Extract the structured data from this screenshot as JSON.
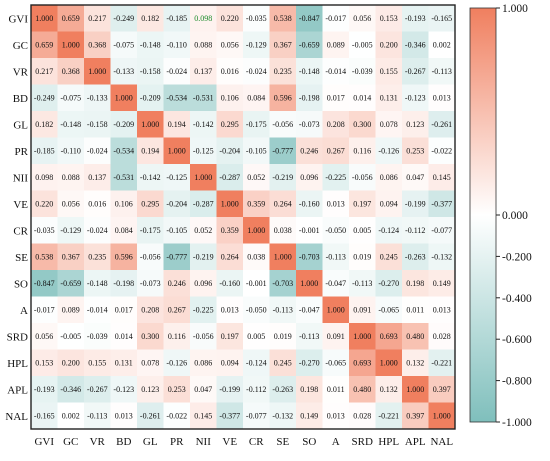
{
  "chart_data": {
    "type": "heatmap",
    "title": "",
    "xlabel": "",
    "ylabel": "",
    "labels": [
      "GVI",
      "GC",
      "VR",
      "BD",
      "GL",
      "PR",
      "NII",
      "VE",
      "CR",
      "SE",
      "SO",
      "A",
      "SRD",
      "HPL",
      "APL",
      "NAL"
    ],
    "matrix": [
      [
        1.0,
        0.659,
        0.217,
        -0.249,
        0.182,
        -0.185,
        0.098,
        0.22,
        -0.035,
        0.538,
        -0.847,
        -0.017,
        0.056,
        0.153,
        -0.193,
        -0.165
      ],
      [
        0.659,
        1.0,
        0.368,
        -0.075,
        -0.148,
        -0.11,
        0.088,
        0.056,
        -0.129,
        0.367,
        -0.659,
        0.089,
        -0.005,
        0.2,
        -0.346,
        0.002
      ],
      [
        0.217,
        0.368,
        1.0,
        -0.133,
        -0.158,
        -0.024,
        0.137,
        0.016,
        -0.024,
        0.235,
        -0.148,
        -0.014,
        -0.039,
        0.155,
        -0.267,
        -0.113
      ],
      [
        -0.249,
        -0.075,
        -0.133,
        1.0,
        -0.209,
        -0.534,
        -0.531,
        0.106,
        0.084,
        0.596,
        -0.198,
        0.017,
        0.014,
        0.131,
        -0.123,
        0.013
      ],
      [
        0.182,
        -0.148,
        -0.158,
        -0.209,
        1.0,
        0.194,
        -0.142,
        0.295,
        -0.175,
        -0.056,
        -0.073,
        0.208,
        0.3,
        0.078,
        0.123,
        -0.261
      ],
      [
        -0.185,
        -0.11,
        -0.024,
        -0.534,
        0.194,
        1.0,
        -0.125,
        -0.204,
        -0.105,
        -0.777,
        0.246,
        0.267,
        0.116,
        -0.126,
        0.253,
        -0.022
      ],
      [
        0.098,
        0.088,
        0.137,
        -0.531,
        -0.142,
        -0.125,
        1.0,
        -0.287,
        0.052,
        -0.219,
        0.096,
        -0.225,
        -0.056,
        0.086,
        0.047,
        0.145
      ],
      [
        0.22,
        0.056,
        0.016,
        0.106,
        0.295,
        -0.204,
        -0.287,
        1.0,
        0.359,
        0.264,
        -0.16,
        0.013,
        0.197,
        0.094,
        -0.199,
        -0.377
      ],
      [
        -0.035,
        -0.129,
        -0.024,
        0.084,
        -0.175,
        -0.105,
        0.052,
        0.359,
        1.0,
        0.038,
        -0.001,
        -0.05,
        0.005,
        -0.124,
        -0.112,
        -0.077
      ],
      [
        0.538,
        0.367,
        0.235,
        0.596,
        -0.056,
        -0.777,
        -0.219,
        0.264,
        0.038,
        1.0,
        -0.703,
        -0.113,
        0.019,
        0.245,
        -0.263,
        -0.132
      ],
      [
        -0.847,
        -0.659,
        -0.148,
        -0.198,
        -0.073,
        0.246,
        0.096,
        -0.16,
        -0.001,
        -0.703,
        1.0,
        -0.047,
        -0.113,
        -0.27,
        0.198,
        0.149
      ],
      [
        -0.017,
        0.089,
        -0.014,
        0.017,
        0.208,
        0.267,
        -0.225,
        0.013,
        -0.05,
        -0.113,
        -0.047,
        1.0,
        0.091,
        -0.065,
        0.011,
        0.013
      ],
      [
        0.056,
        -0.005,
        -0.039,
        0.014,
        0.3,
        0.116,
        -0.056,
        0.197,
        0.005,
        0.019,
        -0.113,
        0.091,
        1.0,
        0.693,
        0.48,
        0.028
      ],
      [
        0.153,
        0.2,
        0.155,
        0.131,
        0.078,
        -0.126,
        0.086,
        0.094,
        -0.124,
        0.245,
        -0.27,
        -0.065,
        0.693,
        1.0,
        0.132,
        -0.221
      ],
      [
        -0.193,
        -0.346,
        -0.267,
        -0.123,
        0.123,
        0.253,
        0.047,
        -0.199,
        -0.112,
        -0.263,
        0.198,
        0.011,
        0.48,
        0.132,
        1.0,
        0.397
      ],
      [
        -0.165,
        0.002,
        -0.113,
        0.013,
        -0.261,
        -0.022,
        0.145,
        -0.377,
        -0.077,
        -0.132,
        0.149,
        0.013,
        0.028,
        -0.221,
        0.397,
        1.0
      ]
    ],
    "value_range": [
      -1,
      1
    ],
    "colorbar": {
      "ticks": [
        1.0,
        0.0,
        -0.2,
        -0.4,
        -0.6,
        -0.8,
        -1.0
      ],
      "tick_labels": [
        "1.000",
        "0.000",
        "-0.200",
        "-0.400",
        "-0.600",
        "-0.800",
        "-1.000"
      ],
      "placement": "right"
    },
    "colors": {
      "positive": "#f07f5f",
      "neutral": "#ffffff",
      "negative": "#7fbfbc"
    },
    "grid": false,
    "legend": "colorbar-right"
  }
}
